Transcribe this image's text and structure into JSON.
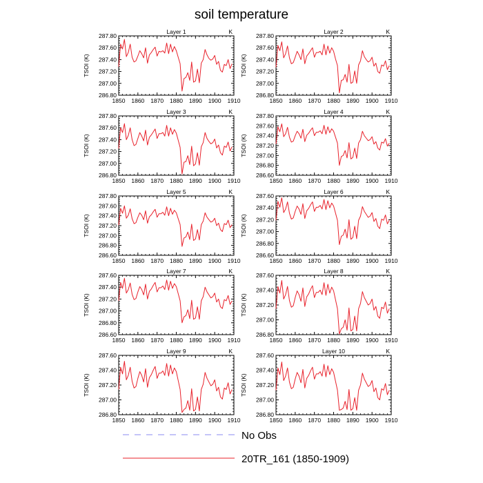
{
  "title": "soil temperature",
  "legend": [
    {
      "label": "No Obs",
      "color": "#8a8af0",
      "dash": true
    },
    {
      "label": "20TR_161 (1850-1909)",
      "color": "#e8202a",
      "dash": false
    }
  ],
  "chart_data": [
    {
      "type": "line",
      "title": "Layer 1",
      "unit_label": "K",
      "ylabel": "TSOI  (K)",
      "xlim": [
        1850,
        1910
      ],
      "ylim": [
        286.8,
        287.8
      ],
      "yticks": [
        "286.80",
        "287.00",
        "287.20",
        "287.40",
        "287.60",
        "287.80"
      ],
      "xticks": [
        "1850",
        "1860",
        "1870",
        "1880",
        "1890",
        "1900",
        "1910"
      ],
      "series": [
        {
          "name": "20TR_161 (1850-1909)",
          "x_start": 1850,
          "values": [
            287.28,
            287.66,
            287.58,
            287.74,
            287.45,
            287.52,
            287.66,
            287.44,
            287.36,
            287.38,
            287.46,
            287.55,
            287.5,
            287.43,
            287.6,
            287.34,
            287.48,
            287.52,
            287.57,
            287.61,
            287.46,
            287.54,
            287.53,
            287.55,
            287.51,
            287.68,
            287.5,
            287.66,
            287.53,
            287.62,
            287.55,
            287.44,
            287.33,
            286.87,
            287.08,
            287.1,
            287.18,
            287.05,
            287.36,
            287.02,
            287.04,
            287.24,
            287.01,
            287.34,
            287.4,
            287.57,
            287.48,
            287.42,
            287.39,
            287.41,
            287.47,
            287.32,
            287.37,
            287.22,
            287.19,
            287.32,
            287.3,
            287.4,
            287.25,
            287.33
          ]
        }
      ]
    },
    {
      "type": "line",
      "title": "Layer 2",
      "unit_label": "K",
      "ylabel": "TSOI  (K)",
      "xlim": [
        1850,
        1910
      ],
      "ylim": [
        286.8,
        287.8
      ],
      "yticks": [
        "286.80",
        "287.00",
        "287.20",
        "287.40",
        "287.60",
        "287.80"
      ],
      "xticks": [
        "1850",
        "1860",
        "1870",
        "1880",
        "1890",
        "1900",
        "1910"
      ],
      "series": [
        {
          "name": "20TR_161 (1850-1909)",
          "x_start": 1850,
          "values": [
            287.27,
            287.64,
            287.55,
            287.7,
            287.43,
            287.5,
            287.63,
            287.43,
            287.33,
            287.35,
            287.44,
            287.54,
            287.48,
            287.4,
            287.58,
            287.33,
            287.46,
            287.5,
            287.55,
            287.6,
            287.44,
            287.52,
            287.52,
            287.54,
            287.48,
            287.66,
            287.48,
            287.63,
            287.51,
            287.6,
            287.54,
            287.41,
            287.3,
            286.84,
            287.05,
            287.06,
            287.15,
            287.02,
            287.32,
            287.0,
            287.02,
            287.21,
            287.0,
            287.31,
            287.38,
            287.55,
            287.45,
            287.4,
            287.36,
            287.38,
            287.44,
            287.29,
            287.34,
            287.2,
            287.17,
            287.31,
            287.29,
            287.38,
            287.23,
            287.3
          ]
        }
      ]
    },
    {
      "type": "line",
      "title": "Layer 3",
      "unit_label": "K",
      "ylabel": "TSOI  (K)",
      "xlim": [
        1850,
        1910
      ],
      "ylim": [
        286.8,
        287.8
      ],
      "yticks": [
        "286.80",
        "287.00",
        "287.20",
        "287.40",
        "287.60",
        "287.80"
      ],
      "xticks": [
        "1850",
        "1860",
        "1870",
        "1880",
        "1890",
        "1900",
        "1910"
      ],
      "series": [
        {
          "name": "20TR_161 (1850-1909)",
          "x_start": 1850,
          "values": [
            287.25,
            287.6,
            287.52,
            287.67,
            287.4,
            287.47,
            287.6,
            287.4,
            287.3,
            287.32,
            287.42,
            287.52,
            287.46,
            287.38,
            287.56,
            287.31,
            287.44,
            287.48,
            287.53,
            287.58,
            287.42,
            287.5,
            287.5,
            287.52,
            287.46,
            287.64,
            287.46,
            287.6,
            287.49,
            287.57,
            287.51,
            287.39,
            287.27,
            286.82,
            287.02,
            287.03,
            287.13,
            286.98,
            287.29,
            286.96,
            286.99,
            287.18,
            286.97,
            287.28,
            287.35,
            287.52,
            287.42,
            287.37,
            287.33,
            287.35,
            287.41,
            287.26,
            287.31,
            287.18,
            287.14,
            287.29,
            287.27,
            287.36,
            287.21,
            287.28
          ]
        }
      ]
    },
    {
      "type": "line",
      "title": "Layer 4",
      "unit_label": "K",
      "ylabel": "TSOI  (K)",
      "xlim": [
        1850,
        1910
      ],
      "ylim": [
        286.6,
        287.8
      ],
      "yticks": [
        "286.60",
        "286.80",
        "287.00",
        "287.20",
        "287.40",
        "287.60",
        "287.80"
      ],
      "xticks": [
        "1850",
        "1860",
        "1870",
        "1880",
        "1890",
        "1900",
        "1910"
      ],
      "series": [
        {
          "name": "20TR_161 (1850-1909)",
          "x_start": 1850,
          "values": [
            287.23,
            287.58,
            287.48,
            287.64,
            287.38,
            287.44,
            287.57,
            287.37,
            287.27,
            287.29,
            287.4,
            287.49,
            287.44,
            287.35,
            287.53,
            287.28,
            287.41,
            287.45,
            287.51,
            287.56,
            287.4,
            287.47,
            287.47,
            287.5,
            287.44,
            287.61,
            287.43,
            287.58,
            287.46,
            287.54,
            287.49,
            287.37,
            287.25,
            286.8,
            286.98,
            287.0,
            287.1,
            286.95,
            287.26,
            286.93,
            286.96,
            287.15,
            286.94,
            287.25,
            287.32,
            287.49,
            287.4,
            287.35,
            287.3,
            287.32,
            287.38,
            287.23,
            287.28,
            287.15,
            287.11,
            287.27,
            287.25,
            287.34,
            287.19,
            287.25
          ]
        }
      ]
    },
    {
      "type": "line",
      "title": "Layer 5",
      "unit_label": "K",
      "ylabel": "TSOI  (K)",
      "xlim": [
        1850,
        1910
      ],
      "ylim": [
        286.6,
        287.8
      ],
      "yticks": [
        "286.60",
        "286.80",
        "287.00",
        "287.20",
        "287.40",
        "287.60",
        "287.80"
      ],
      "xticks": [
        "1850",
        "1860",
        "1870",
        "1880",
        "1890",
        "1900",
        "1910"
      ],
      "series": [
        {
          "name": "20TR_161 (1850-1909)",
          "x_start": 1850,
          "values": [
            287.21,
            287.55,
            287.45,
            287.6,
            287.35,
            287.41,
            287.54,
            287.34,
            287.24,
            287.26,
            287.37,
            287.46,
            287.41,
            287.32,
            287.5,
            287.25,
            287.38,
            287.42,
            287.48,
            287.53,
            287.37,
            287.44,
            287.44,
            287.47,
            287.41,
            287.58,
            287.4,
            287.55,
            287.43,
            287.51,
            287.46,
            287.34,
            287.22,
            286.78,
            286.95,
            286.97,
            287.07,
            286.92,
            287.23,
            286.9,
            286.93,
            287.12,
            286.91,
            287.22,
            287.29,
            287.46,
            287.37,
            287.32,
            287.27,
            287.29,
            287.35,
            287.2,
            287.25,
            287.12,
            287.08,
            287.24,
            287.22,
            287.31,
            287.16,
            287.22
          ]
        }
      ]
    },
    {
      "type": "line",
      "title": "Layer 6",
      "unit_label": "K",
      "ylabel": "TSOI  (K)",
      "xlim": [
        1850,
        1910
      ],
      "ylim": [
        286.6,
        287.6
      ],
      "yticks": [
        "286.60",
        "286.80",
        "287.00",
        "287.20",
        "287.40",
        "287.60"
      ],
      "xticks": [
        "1850",
        "1860",
        "1870",
        "1880",
        "1890",
        "1900",
        "1910"
      ],
      "series": [
        {
          "name": "20TR_161 (1850-1909)",
          "x_start": 1850,
          "values": [
            287.19,
            287.51,
            287.41,
            287.57,
            287.32,
            287.38,
            287.5,
            287.31,
            287.21,
            287.23,
            287.34,
            287.43,
            287.38,
            287.29,
            287.47,
            287.22,
            287.35,
            287.39,
            287.45,
            287.5,
            287.34,
            287.41,
            287.41,
            287.44,
            287.38,
            287.54,
            287.37,
            287.52,
            287.4,
            287.48,
            287.43,
            287.31,
            287.19,
            286.78,
            286.92,
            286.94,
            287.04,
            286.89,
            287.2,
            286.87,
            286.9,
            287.09,
            286.88,
            287.19,
            287.26,
            287.42,
            287.34,
            287.29,
            287.24,
            287.26,
            287.32,
            287.17,
            287.22,
            287.09,
            287.05,
            287.21,
            287.19,
            287.28,
            287.13,
            287.19
          ]
        }
      ]
    },
    {
      "type": "line",
      "title": "Layer 7",
      "unit_label": "K",
      "ylabel": "TSOI  (K)",
      "xlim": [
        1850,
        1910
      ],
      "ylim": [
        286.6,
        287.6
      ],
      "yticks": [
        "286.60",
        "286.80",
        "287.00",
        "287.20",
        "287.40",
        "287.60"
      ],
      "xticks": [
        "1850",
        "1860",
        "1870",
        "1880",
        "1890",
        "1900",
        "1910"
      ],
      "series": [
        {
          "name": "20TR_161 (1850-1909)",
          "x_start": 1850,
          "values": [
            287.17,
            287.48,
            287.38,
            287.55,
            287.3,
            287.36,
            287.47,
            287.28,
            287.19,
            287.21,
            287.32,
            287.41,
            287.36,
            287.27,
            287.45,
            287.2,
            287.33,
            287.37,
            287.43,
            287.48,
            287.32,
            287.39,
            287.39,
            287.42,
            287.36,
            287.52,
            287.35,
            287.5,
            287.38,
            287.46,
            287.41,
            287.29,
            287.17,
            286.8,
            286.9,
            286.92,
            287.02,
            286.87,
            287.18,
            286.86,
            286.88,
            287.07,
            286.86,
            287.17,
            287.24,
            287.4,
            287.32,
            287.27,
            287.22,
            287.24,
            287.3,
            287.15,
            287.2,
            287.07,
            287.04,
            287.19,
            287.17,
            287.26,
            287.11,
            287.17
          ]
        }
      ]
    },
    {
      "type": "line",
      "title": "Layer 8",
      "unit_label": "K",
      "ylabel": "TSOI  (K)",
      "xlim": [
        1850,
        1910
      ],
      "ylim": [
        286.8,
        287.6
      ],
      "yticks": [
        "286.80",
        "287.00",
        "287.20",
        "287.40",
        "287.60"
      ],
      "xticks": [
        "1850",
        "1860",
        "1870",
        "1880",
        "1890",
        "1900",
        "1910"
      ],
      "series": [
        {
          "name": "20TR_161 (1850-1909)",
          "x_start": 1850,
          "values": [
            287.15,
            287.45,
            287.36,
            287.53,
            287.28,
            287.34,
            287.45,
            287.26,
            287.17,
            287.19,
            287.3,
            287.39,
            287.34,
            287.25,
            287.43,
            287.18,
            287.31,
            287.35,
            287.41,
            287.46,
            287.3,
            287.37,
            287.37,
            287.4,
            287.34,
            287.5,
            287.33,
            287.48,
            287.36,
            287.44,
            287.39,
            287.27,
            287.15,
            286.81,
            286.88,
            286.9,
            287.0,
            286.86,
            287.16,
            286.85,
            286.87,
            287.05,
            286.85,
            287.15,
            287.22,
            287.38,
            287.3,
            287.25,
            287.2,
            287.22,
            287.28,
            287.13,
            287.18,
            287.05,
            287.02,
            287.17,
            287.15,
            287.24,
            287.09,
            287.15
          ]
        }
      ]
    },
    {
      "type": "line",
      "title": "Layer 9",
      "unit_label": "K",
      "ylabel": "TSOI  (K)",
      "xlim": [
        1850,
        1910
      ],
      "ylim": [
        286.8,
        287.6
      ],
      "yticks": [
        "286.80",
        "287.00",
        "287.20",
        "287.40",
        "287.60"
      ],
      "xticks": [
        "1850",
        "1860",
        "1870",
        "1880",
        "1890",
        "1900",
        "1910"
      ],
      "series": [
        {
          "name": "20TR_161 (1850-1909)",
          "x_start": 1850,
          "values": [
            287.14,
            287.44,
            287.35,
            287.52,
            287.27,
            287.33,
            287.44,
            287.25,
            287.16,
            287.18,
            287.29,
            287.38,
            287.33,
            287.24,
            287.42,
            287.17,
            287.3,
            287.34,
            287.4,
            287.45,
            287.29,
            287.36,
            287.36,
            287.39,
            287.33,
            287.49,
            287.32,
            287.47,
            287.35,
            287.43,
            287.38,
            287.26,
            287.14,
            286.83,
            286.87,
            286.89,
            286.99,
            286.86,
            287.15,
            286.85,
            286.87,
            287.04,
            286.85,
            287.14,
            287.21,
            287.37,
            287.29,
            287.24,
            287.19,
            287.21,
            287.27,
            287.12,
            287.17,
            287.04,
            287.01,
            287.16,
            287.14,
            287.23,
            287.08,
            287.14
          ]
        }
      ]
    },
    {
      "type": "line",
      "title": "Layer 10",
      "unit_label": "K",
      "ylabel": "TSOI  (K)",
      "xlim": [
        1850,
        1910
      ],
      "ylim": [
        286.8,
        287.6
      ],
      "yticks": [
        "286.80",
        "287.00",
        "287.20",
        "287.40",
        "287.60"
      ],
      "xticks": [
        "1850",
        "1860",
        "1870",
        "1880",
        "1890",
        "1900",
        "1910"
      ],
      "series": [
        {
          "name": "20TR_161 (1850-1909)",
          "x_start": 1850,
          "values": [
            287.13,
            287.43,
            287.34,
            287.51,
            287.26,
            287.32,
            287.43,
            287.24,
            287.15,
            287.17,
            287.28,
            287.37,
            287.32,
            287.23,
            287.41,
            287.16,
            287.29,
            287.33,
            287.39,
            287.44,
            287.28,
            287.35,
            287.35,
            287.38,
            287.32,
            287.48,
            287.31,
            287.46,
            287.34,
            287.42,
            287.37,
            287.25,
            287.13,
            286.86,
            286.87,
            286.89,
            286.98,
            286.87,
            287.14,
            286.86,
            286.88,
            287.03,
            286.86,
            287.13,
            287.2,
            287.36,
            287.28,
            287.23,
            287.18,
            287.2,
            287.26,
            287.11,
            287.16,
            287.03,
            287.0,
            287.15,
            287.13,
            287.22,
            287.07,
            287.13
          ]
        }
      ]
    }
  ]
}
